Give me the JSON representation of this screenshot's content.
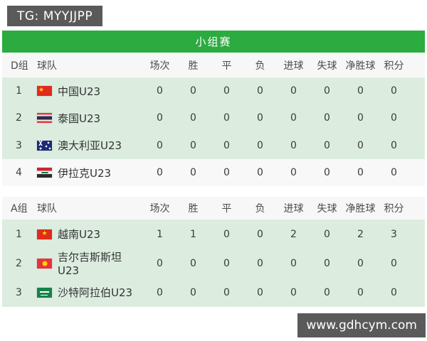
{
  "badges": {
    "tg_label": "TG: MYYJJPP",
    "site_label": "www.gdhcym.com"
  },
  "section_title": "小组赛",
  "colors": {
    "accent_green": "#2BAB40",
    "row_highlight_green": "#DCEDE0",
    "badge_gray": "#5A5A5A",
    "header_bg": "#F7F7F7"
  },
  "stat_columns": [
    "场次",
    "胜",
    "平",
    "负",
    "进球",
    "失球",
    "净胜球",
    "积分"
  ],
  "groups": [
    {
      "group_label": "D组",
      "team_column_label": "球队",
      "rows": [
        {
          "rank": "1",
          "team": "中国U23",
          "flag": "china",
          "highlight": true,
          "stats": [
            "0",
            "0",
            "0",
            "0",
            "0",
            "0",
            "0",
            "0"
          ]
        },
        {
          "rank": "2",
          "team": "泰国U23",
          "flag": "thailand",
          "highlight": true,
          "stats": [
            "0",
            "0",
            "0",
            "0",
            "0",
            "0",
            "0",
            "0"
          ]
        },
        {
          "rank": "3",
          "team": "澳大利亚U23",
          "flag": "australia",
          "highlight": true,
          "stats": [
            "0",
            "0",
            "0",
            "0",
            "0",
            "0",
            "0",
            "0"
          ]
        },
        {
          "rank": "4",
          "team": "伊拉克U23",
          "flag": "iraq",
          "highlight": false,
          "stats": [
            "0",
            "0",
            "0",
            "0",
            "0",
            "0",
            "0",
            "0"
          ]
        }
      ]
    },
    {
      "group_label": "A组",
      "team_column_label": "球队",
      "rows": [
        {
          "rank": "1",
          "team": "越南U23",
          "flag": "vietnam",
          "highlight": true,
          "stats": [
            "1",
            "1",
            "0",
            "0",
            "2",
            "0",
            "2",
            "3"
          ]
        },
        {
          "rank": "2",
          "team": "吉尔吉斯斯坦U23",
          "flag": "kyrgyzstan",
          "highlight": true,
          "stats": [
            "0",
            "0",
            "0",
            "0",
            "0",
            "0",
            "0",
            "0"
          ]
        },
        {
          "rank": "3",
          "team": "沙特阿拉伯U23",
          "flag": "saudi_arabia",
          "highlight": true,
          "stats": [
            "0",
            "0",
            "0",
            "0",
            "0",
            "0",
            "0",
            "0"
          ]
        }
      ]
    }
  ]
}
